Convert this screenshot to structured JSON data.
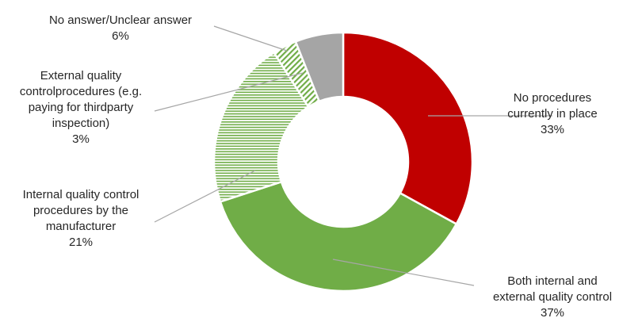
{
  "chart_data": {
    "type": "pie",
    "variant": "donut",
    "title": "",
    "legend": "none",
    "unit": "%",
    "slices": [
      {
        "label": "No procedures currently in place",
        "value": 33,
        "display_value": "33%",
        "color": "#c00000",
        "fill": "solid"
      },
      {
        "label": "Both internal and external quality control",
        "value": 37,
        "display_value": "37%",
        "color": "#70ad47",
        "fill": "solid"
      },
      {
        "label": "Internal quality control procedures by the manufacturer",
        "value": 21,
        "display_value": "21%",
        "color": "#70ad47",
        "fill": "horizontal-hatch"
      },
      {
        "label": "External quality controlprocedures (e.g. paying for thirdparty inspection)",
        "value": 3,
        "display_value": "3%",
        "color": "#70ad47",
        "fill": "diagonal-hatch"
      },
      {
        "label": "No answer/Unclear answer",
        "value": 6,
        "display_value": "6%",
        "color": "#a5a5a5",
        "fill": "solid"
      }
    ],
    "label_lines": [
      [
        "No procedures",
        "currently in place"
      ],
      [
        "Both internal and",
        "external quality control"
      ],
      [
        "Internal quality control",
        "procedures by the",
        "manufacturer"
      ],
      [
        "External quality",
        "controlprocedures (e.g.",
        "paying for thirdparty",
        "inspection)"
      ],
      [
        "No answer/Unclear answer"
      ]
    ]
  }
}
